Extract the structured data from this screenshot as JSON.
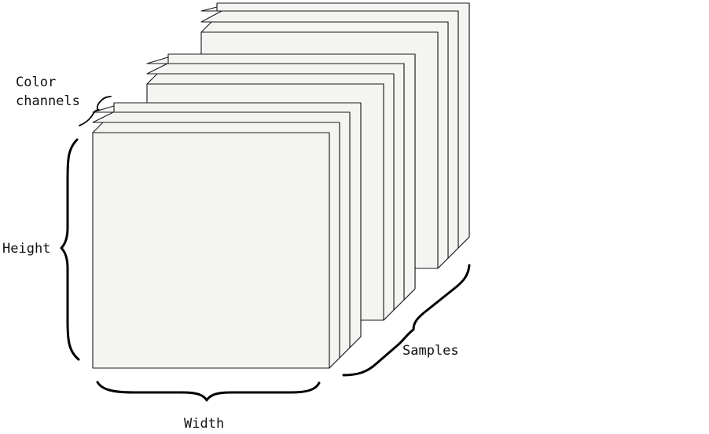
{
  "labels": {
    "color_channels_line1": "Color",
    "color_channels_line2": "channels",
    "height": "Height",
    "width": "Width",
    "samples": "Samples"
  },
  "stacks": [
    {
      "name": "back-sample",
      "channels": 3
    },
    {
      "name": "middle-sample",
      "channels": 3
    },
    {
      "name": "front-sample",
      "channels": 3
    }
  ],
  "colors": {
    "face": "#f4f4f2",
    "stroke": "#1a1a1a"
  }
}
